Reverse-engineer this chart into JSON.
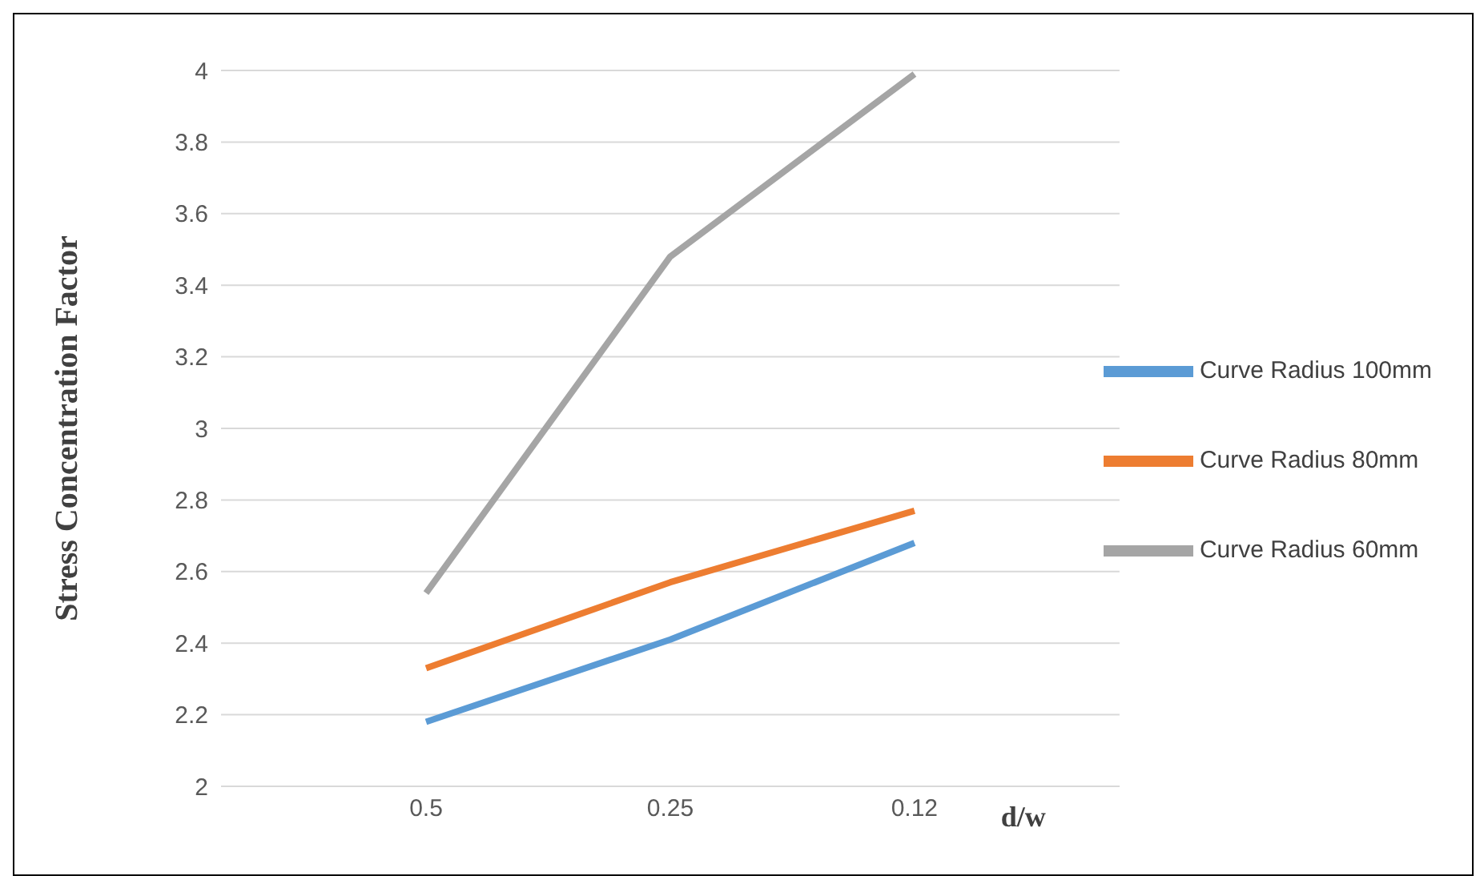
{
  "chart_data": {
    "type": "line",
    "ylabel": "Stress Concentration Factor",
    "xlabel": "d/w",
    "categories": [
      "0.5",
      "0.25",
      "0.12"
    ],
    "series": [
      {
        "name": "Curve Radius 100mm",
        "color": "#5b9bd5",
        "values": [
          2.18,
          2.41,
          2.68
        ]
      },
      {
        "name": "Curve Radius 80mm",
        "color": "#ed7d31",
        "values": [
          2.33,
          2.57,
          2.77
        ]
      },
      {
        "name": "Curve Radius 60mm",
        "color": "#a5a5a5",
        "values": [
          2.54,
          3.48,
          3.99
        ]
      }
    ],
    "ylim": [
      2,
      4
    ],
    "yticks": [
      2,
      2.2,
      2.4,
      2.6,
      2.8,
      3,
      3.2,
      3.4,
      3.6,
      3.8,
      4
    ],
    "grid": "y",
    "legend": "right",
    "marker": "none",
    "line_style": "solid"
  }
}
